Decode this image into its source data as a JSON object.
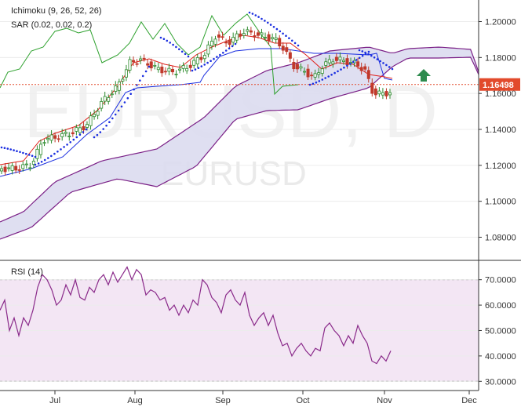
{
  "chart_data": [
    {
      "type": "candlestick",
      "symbol": "EURUSD, D",
      "watermark_main": "EURUSD, D",
      "watermark_sub": "EURUSD",
      "indicator_labels": [
        "Ichimoku (9, 26, 52, 26)",
        "SAR (0.02, 0.02, 0.2)"
      ],
      "current_price": "1.16498",
      "ylim": [
        1.068,
        1.212
      ],
      "yticks": [
        "1.20000",
        "1.18000",
        "1.16000",
        "1.14000",
        "1.12000",
        "1.10000",
        "1.08000"
      ],
      "x_labels": [
        "Jul",
        "Aug",
        "Sep",
        "Oct",
        "Nov",
        "Dec"
      ],
      "colors": {
        "up": "#2e8b2e",
        "down": "#c0392b",
        "tenkan": "#e0201a",
        "kijun": "#1a2ee0",
        "chikou": "#2ca02c",
        "cloud_edge": "#7a1f86",
        "cloud_fill": "#dcdcf0",
        "sar": "#1a2ee0",
        "price_tag": "#e24a2c",
        "arrow": "#2e8b4e"
      }
    },
    {
      "type": "line",
      "title": "RSI (14)",
      "ylim": [
        27,
        77
      ],
      "yticks": [
        "70.0000",
        "60.0000",
        "50.0000",
        "40.0000",
        "30.0000"
      ],
      "levels": [
        70,
        30
      ],
      "colors": {
        "line": "#8a2a8a",
        "band": "#f3e6f4",
        "level": "#555555"
      }
    }
  ]
}
